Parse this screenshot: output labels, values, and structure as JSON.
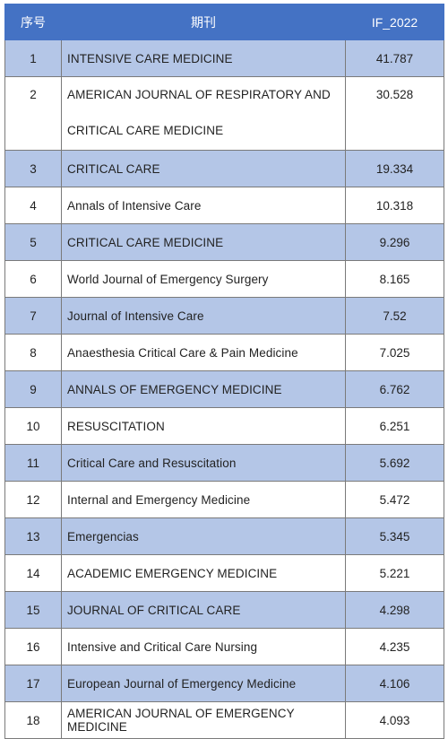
{
  "table": {
    "headers": [
      "序号",
      "期刊",
      "IF_2022"
    ],
    "rows": [
      {
        "idx": "1",
        "name": "INTENSIVE CARE MEDICINE",
        "if": "41.787"
      },
      {
        "idx": "2",
        "name": "AMERICAN JOURNAL OF RESPIRATORY AND CRITICAL CARE MEDICINE",
        "if": "30.528"
      },
      {
        "idx": "3",
        "name": "CRITICAL CARE",
        "if": "19.334"
      },
      {
        "idx": "4",
        "name": "Annals of Intensive Care",
        "if": "10.318"
      },
      {
        "idx": "5",
        "name": "CRITICAL CARE MEDICINE",
        "if": "9.296"
      },
      {
        "idx": "6",
        "name": "World Journal of Emergency Surgery",
        "if": "8.165"
      },
      {
        "idx": "7",
        "name": "Journal of Intensive Care",
        "if": "7.52"
      },
      {
        "idx": "8",
        "name": "Anaesthesia Critical Care & Pain Medicine",
        "if": "7.025"
      },
      {
        "idx": "9",
        "name": "ANNALS OF EMERGENCY MEDICINE",
        "if": "6.762"
      },
      {
        "idx": "10",
        "name": "RESUSCITATION",
        "if": "6.251"
      },
      {
        "idx": "11",
        "name": "Critical Care and Resuscitation",
        "if": "5.692"
      },
      {
        "idx": "12",
        "name": "Internal and Emergency Medicine",
        "if": "5.472"
      },
      {
        "idx": "13",
        "name": "Emergencias",
        "if": "5.345"
      },
      {
        "idx": "14",
        "name": "ACADEMIC EMERGENCY MEDICINE",
        "if": "5.221"
      },
      {
        "idx": "15",
        "name": "JOURNAL OF CRITICAL CARE",
        "if": "4.298"
      },
      {
        "idx": "16",
        "name": "Intensive and Critical Care Nursing",
        "if": "4.235"
      },
      {
        "idx": "17",
        "name": "European Journal of Emergency Medicine",
        "if": "4.106"
      },
      {
        "idx": "18",
        "name": "AMERICAN JOURNAL OF EMERGENCY MEDICINE",
        "if": "4.093"
      }
    ]
  },
  "colors": {
    "header_bg": "#4472c4",
    "header_text": "#ffffff",
    "row_shaded": "#b4c6e7",
    "row_plain": "#ffffff",
    "border": "#7a7a7a"
  }
}
